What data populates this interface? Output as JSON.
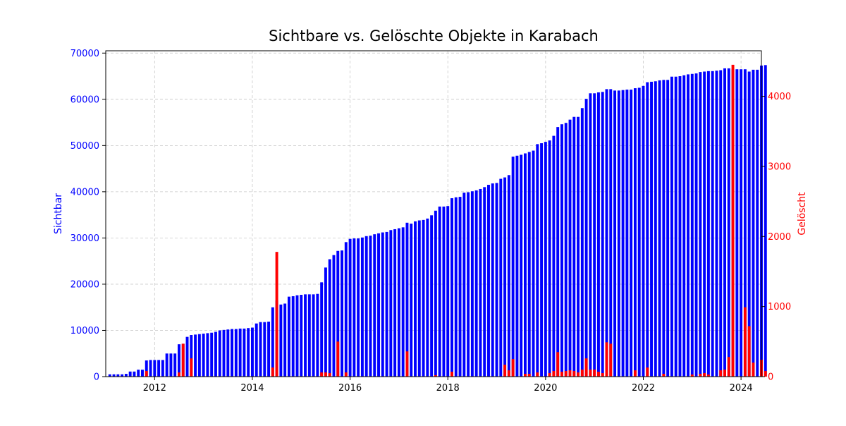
{
  "chart_data": {
    "type": "bar",
    "title": "Sichtbare vs. Gelöschte Objekte in Karabach",
    "xlabel": "",
    "ylabel_left": "Sichtbar",
    "ylabel_right": "Gelöscht",
    "x_start": "2011-01",
    "x_end": "2024-06",
    "x_ticks": [
      "2012",
      "2014",
      "2016",
      "2018",
      "2020",
      "2022",
      "2024"
    ],
    "ylim_left": [
      0,
      70500
    ],
    "yticks_left": [
      0,
      10000,
      20000,
      30000,
      40000,
      50000,
      60000,
      70000
    ],
    "ylim_right": [
      0,
      4650
    ],
    "yticks_right": [
      0,
      1000,
      2000,
      3000,
      4000
    ],
    "grid": true,
    "colors": {
      "sichtbar": "#0000ff",
      "geloescht": "#ff0000",
      "title": "#000000"
    },
    "series": [
      {
        "name": "Sichtbar",
        "axis": "left",
        "points": [
          [
            "2011-02",
            500
          ],
          [
            "2011-03",
            500
          ],
          [
            "2011-04",
            500
          ],
          [
            "2011-05",
            500
          ],
          [
            "2011-06",
            600
          ],
          [
            "2011-07",
            1100
          ],
          [
            "2011-08",
            1100
          ],
          [
            "2011-09",
            1500
          ],
          [
            "2011-10",
            1500
          ],
          [
            "2011-11",
            3500
          ],
          [
            "2011-12",
            3600
          ],
          [
            "2012-01",
            3600
          ],
          [
            "2012-02",
            3600
          ],
          [
            "2012-03",
            3600
          ],
          [
            "2012-04",
            5000
          ],
          [
            "2012-05",
            5000
          ],
          [
            "2012-06",
            5000
          ],
          [
            "2012-07",
            7000
          ],
          [
            "2012-08",
            7100
          ],
          [
            "2012-09",
            8600
          ],
          [
            "2012-10",
            9000
          ],
          [
            "2012-11",
            9100
          ],
          [
            "2012-12",
            9200
          ],
          [
            "2013-01",
            9300
          ],
          [
            "2013-02",
            9400
          ],
          [
            "2013-03",
            9500
          ],
          [
            "2013-04",
            9700
          ],
          [
            "2013-05",
            10000
          ],
          [
            "2013-06",
            10100
          ],
          [
            "2013-07",
            10200
          ],
          [
            "2013-08",
            10300
          ],
          [
            "2013-09",
            10300
          ],
          [
            "2013-10",
            10400
          ],
          [
            "2013-11",
            10400
          ],
          [
            "2013-12",
            10500
          ],
          [
            "2014-01",
            10600
          ],
          [
            "2014-02",
            11500
          ],
          [
            "2014-03",
            11800
          ],
          [
            "2014-04",
            11800
          ],
          [
            "2014-05",
            11900
          ],
          [
            "2014-06",
            15000
          ],
          [
            "2014-07",
            16500
          ],
          [
            "2014-08",
            15600
          ],
          [
            "2014-09",
            15800
          ],
          [
            "2014-10",
            17300
          ],
          [
            "2014-11",
            17400
          ],
          [
            "2014-12",
            17600
          ],
          [
            "2015-01",
            17700
          ],
          [
            "2015-02",
            17800
          ],
          [
            "2015-03",
            17800
          ],
          [
            "2015-04",
            17800
          ],
          [
            "2015-05",
            17900
          ],
          [
            "2015-06",
            20400
          ],
          [
            "2015-07",
            23600
          ],
          [
            "2015-08",
            25400
          ],
          [
            "2015-09",
            26300
          ],
          [
            "2015-10",
            27200
          ],
          [
            "2015-11",
            27300
          ],
          [
            "2015-12",
            29100
          ],
          [
            "2016-01",
            29800
          ],
          [
            "2016-02",
            29900
          ],
          [
            "2016-03",
            29900
          ],
          [
            "2016-04",
            30100
          ],
          [
            "2016-05",
            30400
          ],
          [
            "2016-06",
            30500
          ],
          [
            "2016-07",
            30800
          ],
          [
            "2016-08",
            31000
          ],
          [
            "2016-09",
            31200
          ],
          [
            "2016-10",
            31300
          ],
          [
            "2016-11",
            31700
          ],
          [
            "2016-12",
            31900
          ],
          [
            "2017-01",
            32100
          ],
          [
            "2017-02",
            32300
          ],
          [
            "2017-03",
            33300
          ],
          [
            "2017-04",
            33100
          ],
          [
            "2017-05",
            33600
          ],
          [
            "2017-06",
            33800
          ],
          [
            "2017-07",
            33900
          ],
          [
            "2017-08",
            34200
          ],
          [
            "2017-09",
            34900
          ],
          [
            "2017-10",
            35900
          ],
          [
            "2017-11",
            36800
          ],
          [
            "2017-12",
            36800
          ],
          [
            "2018-01",
            36900
          ],
          [
            "2018-02",
            38600
          ],
          [
            "2018-03",
            38800
          ],
          [
            "2018-04",
            38900
          ],
          [
            "2018-05",
            39800
          ],
          [
            "2018-06",
            39900
          ],
          [
            "2018-07",
            40100
          ],
          [
            "2018-08",
            40300
          ],
          [
            "2018-09",
            40600
          ],
          [
            "2018-10",
            41000
          ],
          [
            "2018-11",
            41500
          ],
          [
            "2018-12",
            41800
          ],
          [
            "2019-01",
            41900
          ],
          [
            "2019-02",
            42800
          ],
          [
            "2019-03",
            43100
          ],
          [
            "2019-04",
            43600
          ],
          [
            "2019-05",
            47600
          ],
          [
            "2019-06",
            47800
          ],
          [
            "2019-07",
            48000
          ],
          [
            "2019-08",
            48300
          ],
          [
            "2019-09",
            48600
          ],
          [
            "2019-10",
            48900
          ],
          [
            "2019-11",
            50300
          ],
          [
            "2019-12",
            50500
          ],
          [
            "2020-01",
            50800
          ],
          [
            "2020-02",
            51100
          ],
          [
            "2020-03",
            52100
          ],
          [
            "2020-04",
            54000
          ],
          [
            "2020-05",
            54600
          ],
          [
            "2020-06",
            54900
          ],
          [
            "2020-07",
            55600
          ],
          [
            "2020-08",
            56200
          ],
          [
            "2020-09",
            56200
          ],
          [
            "2020-10",
            58100
          ],
          [
            "2020-11",
            60100
          ],
          [
            "2020-12",
            61300
          ],
          [
            "2021-01",
            61300
          ],
          [
            "2021-02",
            61500
          ],
          [
            "2021-03",
            61600
          ],
          [
            "2021-04",
            62200
          ],
          [
            "2021-05",
            62200
          ],
          [
            "2021-06",
            61900
          ],
          [
            "2021-07",
            61900
          ],
          [
            "2021-08",
            62000
          ],
          [
            "2021-09",
            62100
          ],
          [
            "2021-10",
            62100
          ],
          [
            "2021-11",
            62400
          ],
          [
            "2021-12",
            62500
          ],
          [
            "2022-01",
            62900
          ],
          [
            "2022-02",
            63700
          ],
          [
            "2022-03",
            63800
          ],
          [
            "2022-04",
            63900
          ],
          [
            "2022-05",
            64100
          ],
          [
            "2022-06",
            64200
          ],
          [
            "2022-07",
            64200
          ],
          [
            "2022-08",
            64900
          ],
          [
            "2022-09",
            64900
          ],
          [
            "2022-10",
            65000
          ],
          [
            "2022-11",
            65200
          ],
          [
            "2022-12",
            65400
          ],
          [
            "2023-01",
            65500
          ],
          [
            "2023-02",
            65600
          ],
          [
            "2023-03",
            65900
          ],
          [
            "2023-04",
            66000
          ],
          [
            "2023-05",
            66100
          ],
          [
            "2023-06",
            66100
          ],
          [
            "2023-07",
            66200
          ],
          [
            "2023-08",
            66300
          ],
          [
            "2023-09",
            66700
          ],
          [
            "2023-10",
            66700
          ],
          [
            "2023-11",
            66500
          ],
          [
            "2023-12",
            66500
          ],
          [
            "2024-01",
            66500
          ],
          [
            "2024-02",
            66500
          ],
          [
            "2024-03",
            66000
          ],
          [
            "2024-04",
            66400
          ],
          [
            "2024-05",
            66400
          ],
          [
            "2024-06",
            67300
          ],
          [
            "2024-07",
            67400
          ]
        ]
      },
      {
        "name": "Gelöscht",
        "axis": "right",
        "points": [
          [
            "2011-11",
            80
          ],
          [
            "2012-07",
            60
          ],
          [
            "2012-08",
            470
          ],
          [
            "2012-10",
            260
          ],
          [
            "2014-06",
            130
          ],
          [
            "2014-07",
            1780
          ],
          [
            "2015-06",
            60
          ],
          [
            "2015-07",
            60
          ],
          [
            "2015-08",
            50
          ],
          [
            "2015-10",
            500
          ],
          [
            "2015-12",
            60
          ],
          [
            "2017-03",
            360
          ],
          [
            "2017-10",
            20
          ],
          [
            "2018-02",
            70
          ],
          [
            "2019-03",
            170
          ],
          [
            "2019-04",
            90
          ],
          [
            "2019-05",
            250
          ],
          [
            "2019-08",
            40
          ],
          [
            "2019-09",
            40
          ],
          [
            "2019-11",
            60
          ],
          [
            "2020-02",
            50
          ],
          [
            "2020-03",
            80
          ],
          [
            "2020-04",
            350
          ],
          [
            "2020-05",
            70
          ],
          [
            "2020-06",
            80
          ],
          [
            "2020-07",
            90
          ],
          [
            "2020-08",
            80
          ],
          [
            "2020-09",
            60
          ],
          [
            "2020-10",
            100
          ],
          [
            "2020-11",
            260
          ],
          [
            "2020-12",
            100
          ],
          [
            "2021-01",
            100
          ],
          [
            "2021-02",
            70
          ],
          [
            "2021-03",
            50
          ],
          [
            "2021-04",
            490
          ],
          [
            "2021-05",
            470
          ],
          [
            "2021-11",
            90
          ],
          [
            "2022-02",
            130
          ],
          [
            "2022-06",
            40
          ],
          [
            "2023-01",
            30
          ],
          [
            "2023-03",
            40
          ],
          [
            "2023-04",
            50
          ],
          [
            "2023-05",
            30
          ],
          [
            "2023-08",
            90
          ],
          [
            "2023-09",
            100
          ],
          [
            "2023-10",
            280
          ],
          [
            "2023-11",
            4450
          ],
          [
            "2024-02",
            990
          ],
          [
            "2024-03",
            720
          ],
          [
            "2024-04",
            200
          ],
          [
            "2024-06",
            240
          ],
          [
            "2024-07",
            80
          ]
        ]
      }
    ]
  }
}
